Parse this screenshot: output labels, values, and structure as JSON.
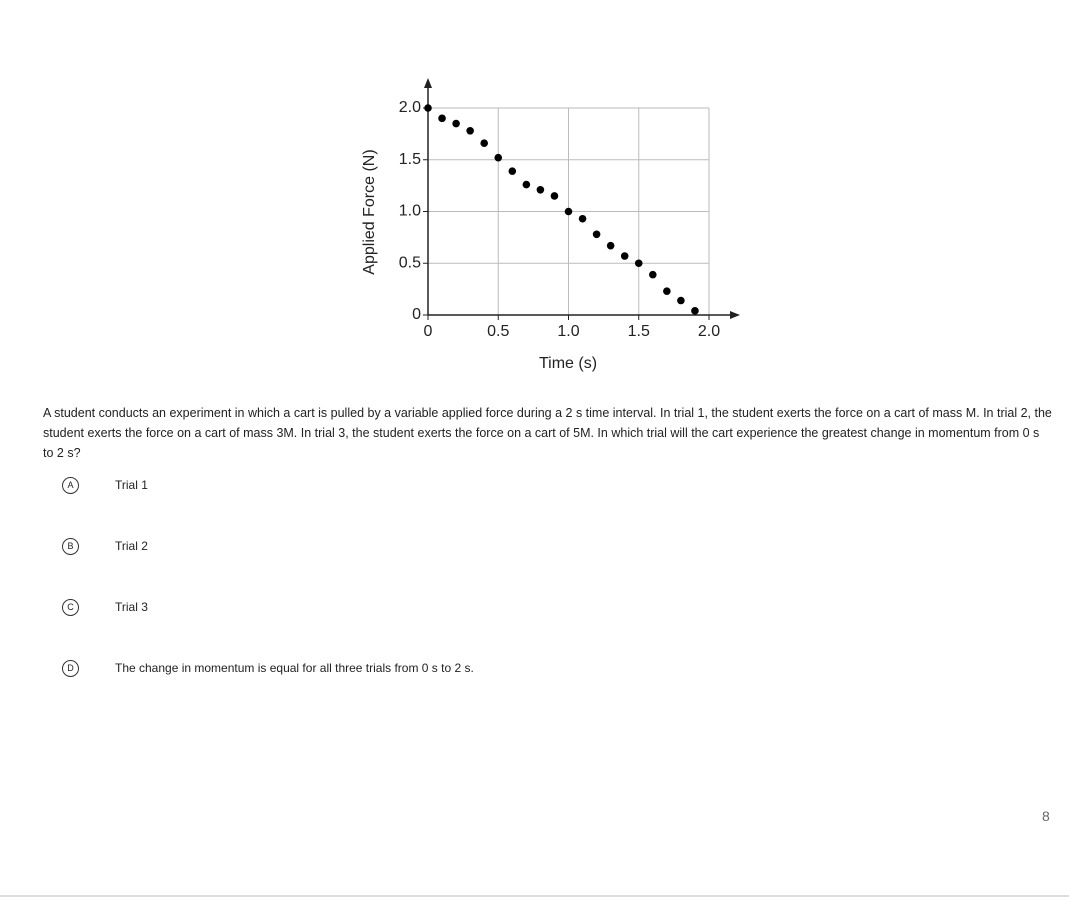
{
  "chart_data": {
    "type": "scatter",
    "xlabel": "Time (s)",
    "ylabel": "Applied Force (N)",
    "x": [
      0,
      0.1,
      0.2,
      0.3,
      0.4,
      0.5,
      0.6,
      0.7,
      0.8,
      0.9,
      1.0,
      1.1,
      1.2,
      1.3,
      1.4,
      1.5,
      1.6,
      1.7,
      1.8,
      1.9
    ],
    "values": [
      2.0,
      1.9,
      1.85,
      1.78,
      1.66,
      1.52,
      1.39,
      1.26,
      1.21,
      1.15,
      1.0,
      0.93,
      0.78,
      0.67,
      0.57,
      0.5,
      0.39,
      0.23,
      0.14,
      0.04
    ],
    "color": "#000000",
    "xlim": [
      0,
      2
    ],
    "ylim": [
      0,
      2
    ],
    "xticks": [
      0,
      0.5,
      {
        "value": 1,
        "label": "1.0"
      },
      1.5,
      {
        "value": 2,
        "label": "2.0"
      }
    ],
    "yticks": [
      0,
      0.5,
      {
        "value": 1,
        "label": "1.0"
      },
      1.5,
      {
        "value": 2,
        "label": "2.0"
      }
    ],
    "grid": true
  },
  "question": "A student conducts an experiment in which a cart is pulled by a variable applied force during a 2 s time interval. In trial 1, the student exerts the force on a cart of mass M. In trial 2, the student exerts the force on a cart of mass 3M. In trial 3, the student exerts the force on a cart of 5M. In which trial will the cart experience the greatest change in momentum from 0 s to 2 s?",
  "options": [
    {
      "letter": "A",
      "text": "Trial 1"
    },
    {
      "letter": "B",
      "text": "Trial 2"
    },
    {
      "letter": "C",
      "text": "Trial 3"
    },
    {
      "letter": "D",
      "text": "The change in momentum is equal for all three trials from 0 s to 2 s."
    }
  ],
  "page_number": "8"
}
